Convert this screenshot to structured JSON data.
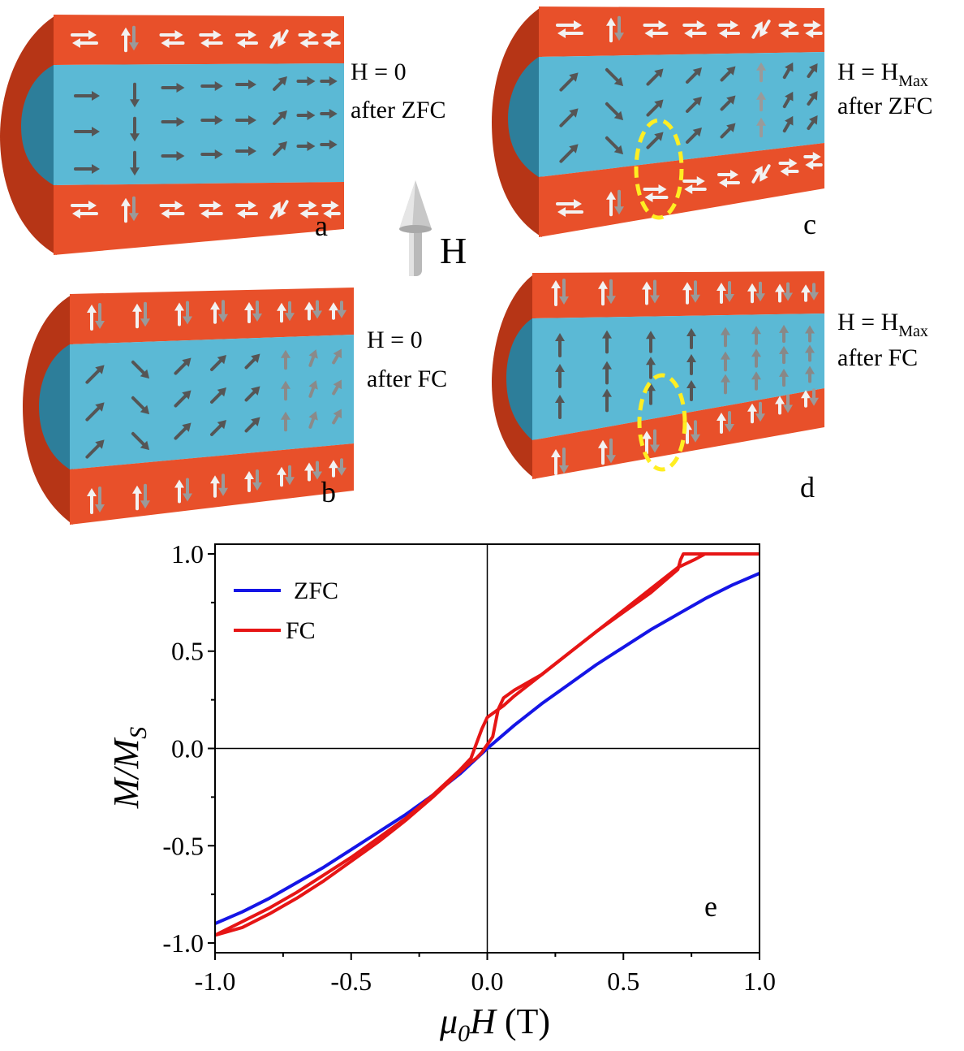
{
  "colors": {
    "shell": "#e8502a",
    "shell_dark": "#b63516",
    "shell_edge": "#8c2a10",
    "core": "#5bb9d5",
    "core_dark": "#2d7e9a",
    "arrow_dark": "#555555",
    "arrow_light": "#f2f2f2",
    "highlight": "#ffee22",
    "zfc": "#1515e6",
    "fc": "#e61515"
  },
  "panels": {
    "a": {
      "letter": "a",
      "label_line1": "H = 0",
      "label_line2": "after ZFC"
    },
    "b": {
      "letter": "b",
      "label_line1": "H = 0",
      "label_line2": "after FC"
    },
    "c": {
      "letter": "c",
      "label_line1_main": "H = H",
      "label_line1_sub": "Max",
      "label_line2": "after ZFC"
    },
    "d": {
      "letter": "d",
      "label_line1_main": "H = H",
      "label_line1_sub": "Max",
      "label_line2": "after FC"
    }
  },
  "field_arrow": {
    "label": "H",
    "icon": "field-cone-arrow-icon"
  },
  "chart_data": {
    "type": "line",
    "panel_letter": "e",
    "xlabel_mu": "μ",
    "xlabel_sub": "0",
    "xlabel_h": "H",
    "xlabel_unit": " (T)",
    "ylabel_main": "M/M",
    "ylabel_sub": "S",
    "xlim": [
      -1.0,
      1.0
    ],
    "ylim": [
      -1.05,
      1.05
    ],
    "xticks": [
      -1.0,
      -0.5,
      0.0,
      0.5,
      1.0
    ],
    "xtick_labels": [
      "-1.0",
      "-0.5",
      "0.0",
      "0.5",
      "1.0"
    ],
    "yticks": [
      -1.0,
      -0.5,
      0.0,
      0.5,
      1.0
    ],
    "ytick_labels": [
      "-1.0",
      "-0.5",
      "0.0",
      "0.5",
      "1.0"
    ],
    "zero_lines": true,
    "legend_position": "top-left",
    "series": [
      {
        "name": "ZFC",
        "color": "#1515e6",
        "x": [
          -1.0,
          -0.9,
          -0.8,
          -0.7,
          -0.6,
          -0.5,
          -0.4,
          -0.3,
          -0.2,
          -0.1,
          0.0,
          0.1,
          0.2,
          0.3,
          0.4,
          0.5,
          0.6,
          0.7,
          0.8,
          0.9,
          1.0
        ],
        "y": [
          -0.9,
          -0.84,
          -0.77,
          -0.69,
          -0.61,
          -0.52,
          -0.43,
          -0.34,
          -0.24,
          -0.13,
          0.0,
          0.12,
          0.23,
          0.33,
          0.43,
          0.52,
          0.61,
          0.69,
          0.77,
          0.84,
          0.9
        ]
      },
      {
        "name": "FC",
        "color": "#e61515",
        "x": [
          -1.0,
          -0.9,
          -0.8,
          -0.7,
          -0.6,
          -0.5,
          -0.4,
          -0.3,
          -0.2,
          -0.1,
          -0.06,
          -0.02,
          0.0,
          0.02,
          0.04,
          0.06,
          0.1,
          0.2,
          0.3,
          0.4,
          0.5,
          0.6,
          0.7,
          0.71,
          0.72,
          0.8,
          0.9,
          1.0
        ],
        "y": [
          -0.96,
          -0.89,
          -0.82,
          -0.74,
          -0.65,
          -0.56,
          -0.46,
          -0.36,
          -0.24,
          -0.11,
          -0.05,
          0.1,
          0.16,
          0.18,
          0.2,
          0.22,
          0.27,
          0.38,
          0.49,
          0.6,
          0.7,
          0.8,
          0.92,
          0.97,
          1.0,
          1.0,
          1.0,
          1.0
        ]
      },
      {
        "name": "",
        "color": "#e61515",
        "x": [
          1.0,
          0.9,
          0.8,
          0.76,
          0.7,
          0.6,
          0.5,
          0.4,
          0.3,
          0.2,
          0.1,
          0.06,
          0.04,
          0.02,
          0.0,
          -0.02,
          -0.04,
          -0.06,
          -0.1,
          -0.2,
          -0.3,
          -0.4,
          -0.5,
          -0.6,
          -0.7,
          -0.8,
          -0.9,
          -1.0
        ],
        "y": [
          1.0,
          1.0,
          1.0,
          0.97,
          0.93,
          0.82,
          0.71,
          0.6,
          0.49,
          0.38,
          0.3,
          0.26,
          0.2,
          0.06,
          0.02,
          -0.02,
          -0.05,
          -0.07,
          -0.12,
          -0.25,
          -0.37,
          -0.48,
          -0.58,
          -0.68,
          -0.77,
          -0.85,
          -0.92,
          -0.96
        ]
      }
    ]
  }
}
